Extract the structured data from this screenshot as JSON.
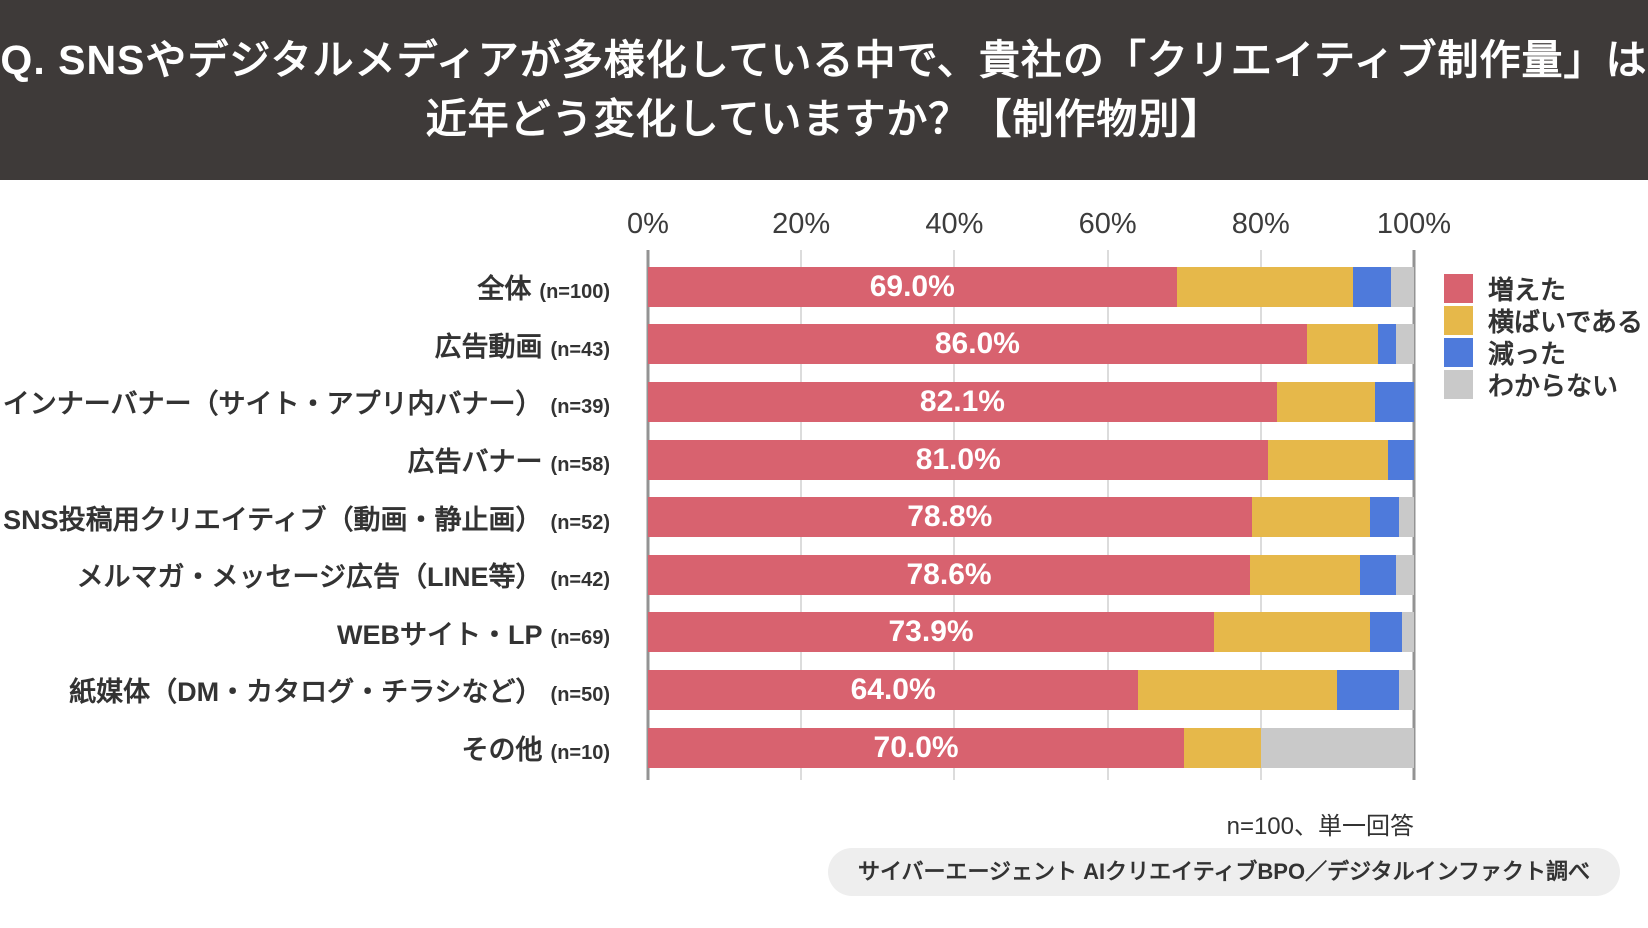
{
  "header": {
    "title_line1": "Q. SNSやデジタルメディアが多様化している中で、貴社の「クリエイティブ制作量」は",
    "title_line2": "近年どう変化していますか？【制作物別】",
    "bg_color": "#3E3A39"
  },
  "chart_data": {
    "type": "bar",
    "stacked": true,
    "orientation": "horizontal",
    "unit": "%",
    "xlim": [
      0,
      100
    ],
    "x_ticks": [
      "0%",
      "20%",
      "40%",
      "60%",
      "80%",
      "100%"
    ],
    "grid": true,
    "legend_position": "right",
    "legend": [
      {
        "key": "increased",
        "label": "増えた",
        "color": "#D8626F"
      },
      {
        "key": "flat",
        "label": "横ばいである",
        "color": "#E6B84A"
      },
      {
        "key": "decreased",
        "label": "減った",
        "color": "#4E7ADB"
      },
      {
        "key": "unknown",
        "label": "わからない",
        "color": "#C9C9C9"
      }
    ],
    "rows": [
      {
        "category": "全体",
        "n_label": "(n=100)",
        "bar_label": "69.0%",
        "values": {
          "increased": 69.0,
          "flat": 23.0,
          "decreased": 5.0,
          "unknown": 3.0
        }
      },
      {
        "category": "広告動画",
        "n_label": "(n=43)",
        "bar_label": "86.0%",
        "values": {
          "increased": 86.0,
          "flat": 9.3,
          "decreased": 2.3,
          "unknown": 2.4
        }
      },
      {
        "category": "インナーバナー（サイト・アプリ内バナー）",
        "n_label": "(n=39)",
        "bar_label": "82.1%",
        "values": {
          "increased": 82.1,
          "flat": 12.8,
          "decreased": 5.1,
          "unknown": 0
        }
      },
      {
        "category": "広告バナー",
        "n_label": "(n=58)",
        "bar_label": "81.0%",
        "values": {
          "increased": 81.0,
          "flat": 15.6,
          "decreased": 3.4,
          "unknown": 0
        }
      },
      {
        "category": "SNS投稿用クリエイティブ（動画・静止画）",
        "n_label": "(n=52)",
        "bar_label": "78.8%",
        "values": {
          "increased": 78.8,
          "flat": 15.4,
          "decreased": 3.9,
          "unknown": 1.9
        }
      },
      {
        "category": "メルマガ・メッセージ広告（LINE等）",
        "n_label": "(n=42)",
        "bar_label": "78.6%",
        "values": {
          "increased": 78.6,
          "flat": 14.3,
          "decreased": 4.8,
          "unknown": 2.3
        }
      },
      {
        "category": "WEBサイト・LP",
        "n_label": "(n=69)",
        "bar_label": "73.9%",
        "values": {
          "increased": 73.9,
          "flat": 20.3,
          "decreased": 4.3,
          "unknown": 1.5
        }
      },
      {
        "category": "紙媒体（DM・カタログ・チラシなど）",
        "n_label": "(n=50)",
        "bar_label": "64.0%",
        "values": {
          "increased": 64.0,
          "flat": 26.0,
          "decreased": 8.0,
          "unknown": 2.0
        }
      },
      {
        "category": "その他",
        "n_label": "(n=10)",
        "bar_label": "70.0%",
        "values": {
          "increased": 70.0,
          "flat": 10.0,
          "decreased": 0,
          "unknown": 20.0
        }
      }
    ]
  },
  "footer": {
    "note": "n=100、単一回答",
    "source": "サイバーエージェント AIクリエイティブBPO／デジタルインファクト調べ"
  }
}
